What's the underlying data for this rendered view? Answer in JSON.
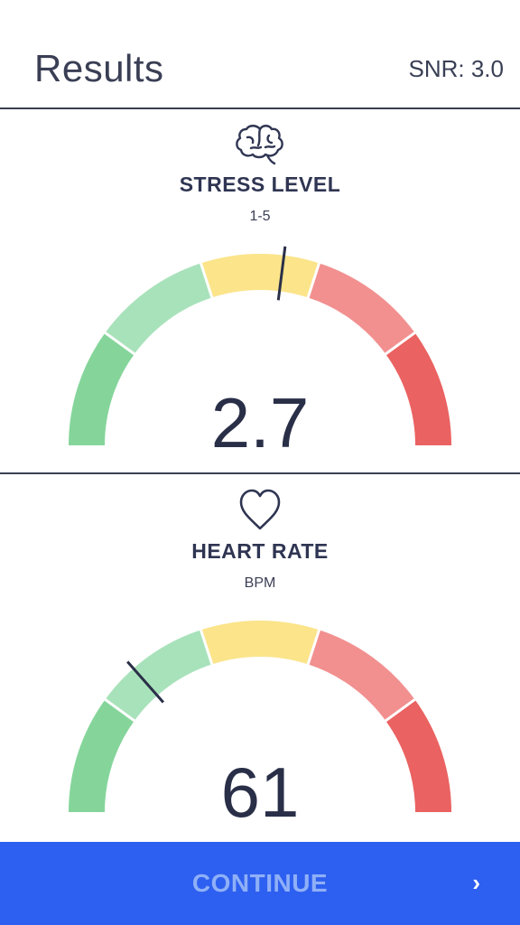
{
  "header": {
    "title": "Results",
    "snr": "SNR: 3.0"
  },
  "metrics": [
    {
      "icon": "brain-icon",
      "label": "STRESS LEVEL",
      "unit": "1-5",
      "value": "2.7",
      "needle_fraction": 0.54
    },
    {
      "icon": "heart-icon",
      "label": "HEART RATE",
      "unit": "BPM",
      "value": "61",
      "needle_fraction": 0.27
    }
  ],
  "gauge_colors": [
    "#85d59b",
    "#a8e2bb",
    "#fbe48a",
    "#f29090",
    "#ea6261"
  ],
  "footer": {
    "continue_label": "CONTINUE",
    "chevron": "›"
  }
}
